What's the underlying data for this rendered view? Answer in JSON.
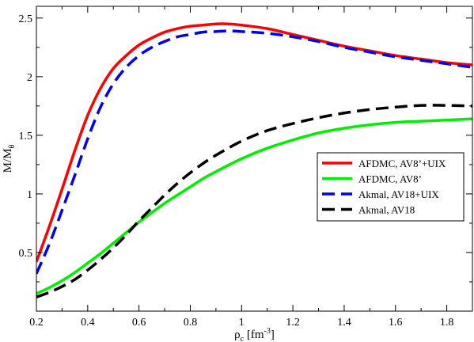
{
  "chart_data": {
    "type": "line",
    "xlabel": "ρ",
    "xlabel_sub": "c",
    "xlabel_unit": " [fm",
    "xlabel_unit_sup": "-3",
    "xlabel_unit_end": "]",
    "ylabel": "M/M",
    "ylabel_sub": "θ",
    "xlim": [
      0.2,
      1.9
    ],
    "ylim": [
      0,
      2.6
    ],
    "xticks": [
      "0.2",
      "0.4",
      "0.6",
      "0.8",
      "1",
      "1.2",
      "1.4",
      "1.6",
      "1.8"
    ],
    "yticks": [
      "0.5",
      "1",
      "1.5",
      "2",
      "2.5"
    ],
    "grid": false,
    "legend_position": "right",
    "series": [
      {
        "name": "AFDMC, AV8’+UIX",
        "color": "#ff0000",
        "dash": "solid",
        "points": [
          [
            0.2,
            0.42
          ],
          [
            0.25,
            0.72
          ],
          [
            0.3,
            1.04
          ],
          [
            0.35,
            1.37
          ],
          [
            0.4,
            1.67
          ],
          [
            0.45,
            1.9
          ],
          [
            0.5,
            2.07
          ],
          [
            0.55,
            2.18
          ],
          [
            0.6,
            2.27
          ],
          [
            0.65,
            2.33
          ],
          [
            0.7,
            2.38
          ],
          [
            0.75,
            2.41
          ],
          [
            0.8,
            2.43
          ],
          [
            0.85,
            2.44
          ],
          [
            0.9,
            2.45
          ],
          [
            0.95,
            2.45
          ],
          [
            1.0,
            2.44
          ],
          [
            1.1,
            2.41
          ],
          [
            1.2,
            2.36
          ],
          [
            1.3,
            2.31
          ],
          [
            1.4,
            2.26
          ],
          [
            1.5,
            2.22
          ],
          [
            1.6,
            2.18
          ],
          [
            1.7,
            2.15
          ],
          [
            1.8,
            2.12
          ],
          [
            1.9,
            2.1
          ]
        ]
      },
      {
        "name": "AFDMC, AV8’",
        "color": "#00ee00",
        "dash": "solid",
        "points": [
          [
            0.2,
            0.15
          ],
          [
            0.25,
            0.2
          ],
          [
            0.3,
            0.26
          ],
          [
            0.35,
            0.33
          ],
          [
            0.4,
            0.41
          ],
          [
            0.45,
            0.49
          ],
          [
            0.5,
            0.58
          ],
          [
            0.55,
            0.67
          ],
          [
            0.6,
            0.76
          ],
          [
            0.65,
            0.84
          ],
          [
            0.7,
            0.92
          ],
          [
            0.75,
            0.99
          ],
          [
            0.8,
            1.06
          ],
          [
            0.85,
            1.13
          ],
          [
            0.9,
            1.19
          ],
          [
            1.0,
            1.3
          ],
          [
            1.1,
            1.39
          ],
          [
            1.2,
            1.46
          ],
          [
            1.3,
            1.52
          ],
          [
            1.4,
            1.56
          ],
          [
            1.5,
            1.59
          ],
          [
            1.6,
            1.61
          ],
          [
            1.7,
            1.62
          ],
          [
            1.8,
            1.63
          ],
          [
            1.9,
            1.64
          ]
        ]
      },
      {
        "name": "Akmal, AV18+UIX",
        "color": "#0000ee",
        "dash": "dashed",
        "points": [
          [
            0.2,
            0.32
          ],
          [
            0.25,
            0.57
          ],
          [
            0.3,
            0.86
          ],
          [
            0.35,
            1.16
          ],
          [
            0.4,
            1.47
          ],
          [
            0.45,
            1.74
          ],
          [
            0.5,
            1.94
          ],
          [
            0.55,
            2.08
          ],
          [
            0.6,
            2.18
          ],
          [
            0.65,
            2.25
          ],
          [
            0.7,
            2.3
          ],
          [
            0.75,
            2.34
          ],
          [
            0.8,
            2.36
          ],
          [
            0.85,
            2.38
          ],
          [
            0.9,
            2.385
          ],
          [
            0.95,
            2.39
          ],
          [
            1.0,
            2.385
          ],
          [
            1.1,
            2.37
          ],
          [
            1.2,
            2.34
          ],
          [
            1.3,
            2.3
          ],
          [
            1.4,
            2.25
          ],
          [
            1.5,
            2.21
          ],
          [
            1.6,
            2.17
          ],
          [
            1.7,
            2.14
          ],
          [
            1.8,
            2.11
          ],
          [
            1.9,
            2.08
          ]
        ]
      },
      {
        "name": "Akmal, AV18",
        "color": "#000000",
        "dash": "dashed",
        "points": [
          [
            0.2,
            0.12
          ],
          [
            0.25,
            0.16
          ],
          [
            0.3,
            0.21
          ],
          [
            0.35,
            0.27
          ],
          [
            0.4,
            0.35
          ],
          [
            0.45,
            0.44
          ],
          [
            0.5,
            0.54
          ],
          [
            0.55,
            0.65
          ],
          [
            0.6,
            0.77
          ],
          [
            0.65,
            0.88
          ],
          [
            0.7,
            0.99
          ],
          [
            0.75,
            1.09
          ],
          [
            0.8,
            1.18
          ],
          [
            0.85,
            1.26
          ],
          [
            0.9,
            1.33
          ],
          [
            1.0,
            1.45
          ],
          [
            1.1,
            1.54
          ],
          [
            1.2,
            1.6
          ],
          [
            1.3,
            1.65
          ],
          [
            1.4,
            1.69
          ],
          [
            1.5,
            1.72
          ],
          [
            1.6,
            1.74
          ],
          [
            1.7,
            1.755
          ],
          [
            1.8,
            1.755
          ],
          [
            1.9,
            1.75
          ]
        ]
      }
    ]
  }
}
